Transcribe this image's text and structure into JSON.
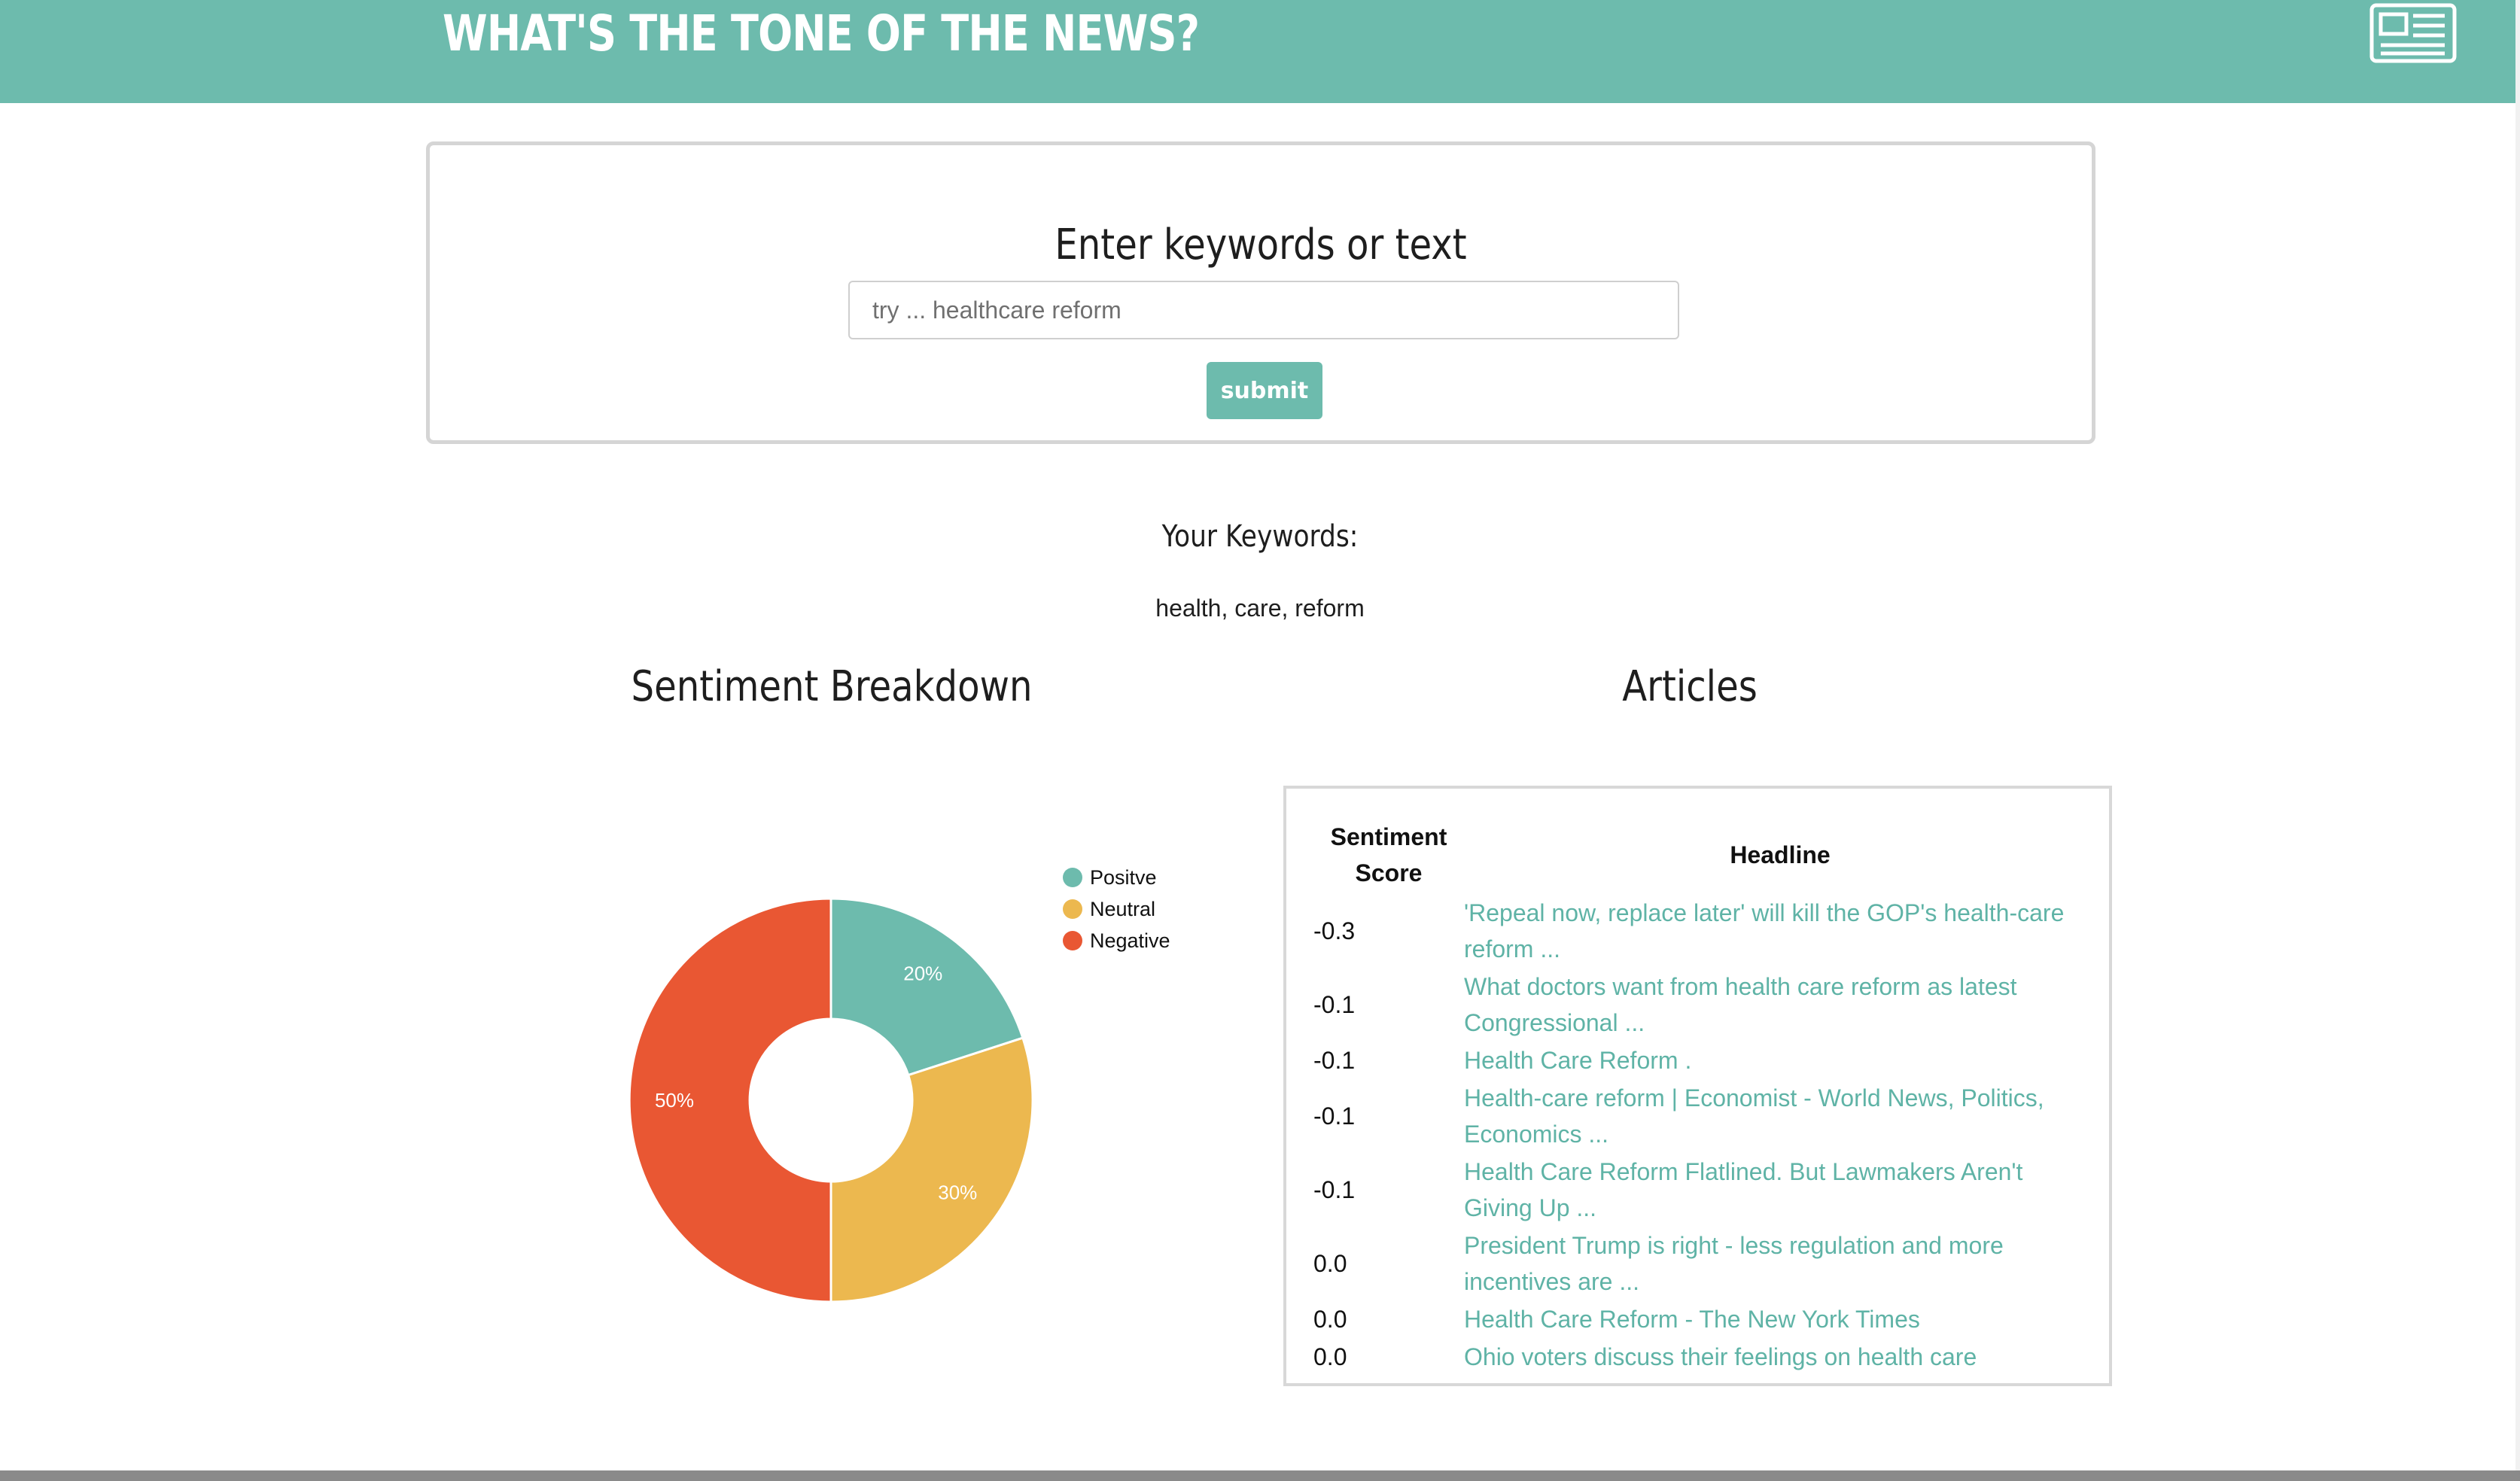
{
  "header": {
    "title": "WHAT'S THE TONE OF THE NEWS?",
    "icon": "newspaper-icon",
    "background_color": "#6dbbad"
  },
  "search": {
    "label": "Enter keywords or text",
    "placeholder": "try ... healthcare reform",
    "value": "",
    "submit_label": "submit"
  },
  "keywords": {
    "heading": "Your Keywords:",
    "value": "health, care, reform"
  },
  "sentiment": {
    "title": "Sentiment Breakdown"
  },
  "articles": {
    "title": "Articles",
    "columns": [
      "Sentiment Score",
      "Headline"
    ],
    "rows": [
      {
        "score": "-0.3",
        "headline": "'Repeal now, replace later' will kill the GOP's health-care reform ..."
      },
      {
        "score": "-0.1",
        "headline": "What doctors want from health care reform as latest Congressional ..."
      },
      {
        "score": "-0.1",
        "headline": "Health Care Reform ."
      },
      {
        "score": "-0.1",
        "headline": "Health-care reform | Economist - World News, Politics, Economics ..."
      },
      {
        "score": "-0.1",
        "headline": "Health Care Reform Flatlined. But Lawmakers Aren't Giving Up ..."
      },
      {
        "score": "0.0",
        "headline": "President Trump is right - less regulation and more incentives are ..."
      },
      {
        "score": "0.0",
        "headline": "Health Care Reform - The New York Times"
      },
      {
        "score": "0.0",
        "headline": "Ohio voters discuss their feelings on health care"
      }
    ],
    "link_color": "#5fb3a6"
  },
  "chart_data": {
    "type": "pie",
    "variant": "donut",
    "title": "Sentiment Breakdown",
    "categories": [
      "Positve",
      "Neutral",
      "Negative"
    ],
    "values": [
      20,
      30,
      50
    ],
    "labels": [
      "20%",
      "30%",
      "50%"
    ],
    "colors": [
      "#6dbbad",
      "#ecb84f",
      "#e95733"
    ],
    "legend": "top-right"
  }
}
